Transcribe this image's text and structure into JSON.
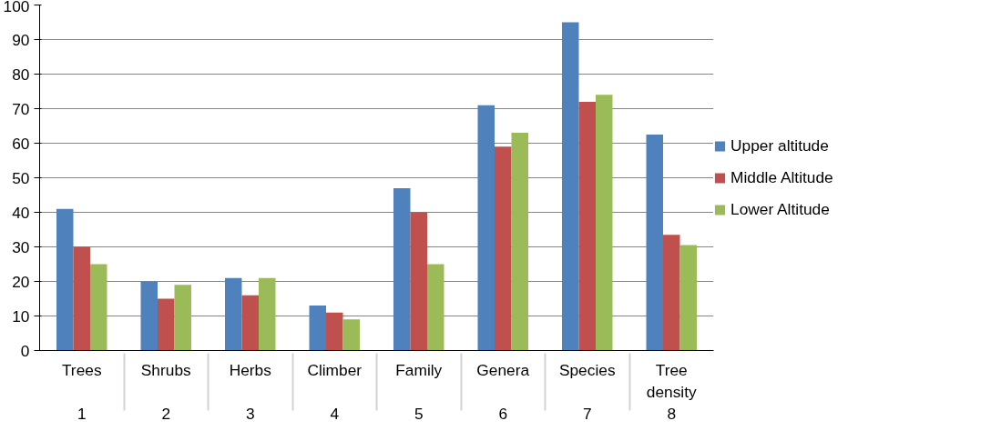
{
  "chart_data": {
    "type": "bar",
    "categories": [
      "Trees",
      "Shrubs",
      "Herbs",
      "Climber",
      "Family",
      "Genera",
      "Species",
      "Tree density"
    ],
    "series": [
      {
        "name": "Upper altitude",
        "color": "#4f81bd",
        "values": [
          41,
          20,
          21,
          13,
          47,
          71,
          95,
          62.5
        ]
      },
      {
        "name": "Middle Altitude",
        "color": "#c0504d",
        "values": [
          30,
          15,
          16,
          11,
          40,
          59,
          72,
          33.5
        ]
      },
      {
        "name": "Lower Altitude",
        "color": "#9bbb59",
        "values": [
          25,
          19,
          21,
          9,
          25,
          63,
          74,
          30.5
        ]
      }
    ],
    "annotations": [
      "1",
      "2",
      "3",
      "4",
      "5",
      "6",
      "7",
      "8"
    ],
    "ylim": [
      0,
      100
    ],
    "yticks": [
      0,
      10,
      20,
      30,
      40,
      50,
      60,
      70,
      80,
      90,
      100
    ],
    "grid": "y",
    "legend": "right"
  }
}
